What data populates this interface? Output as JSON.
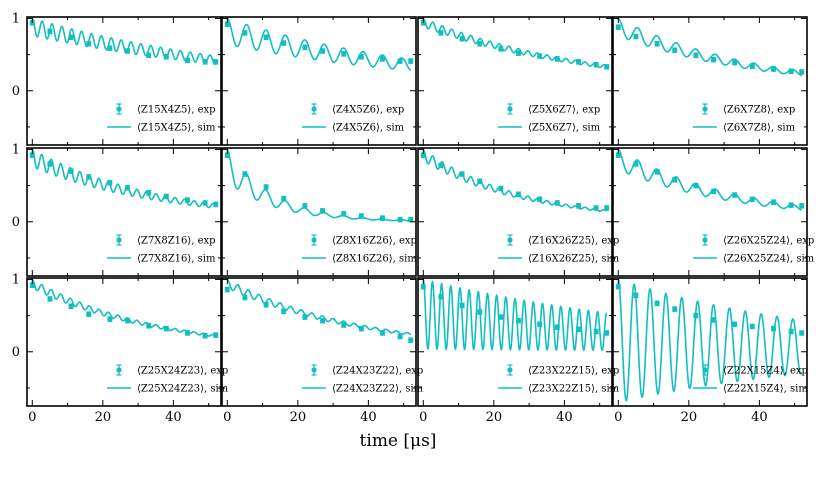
{
  "figure": {
    "xlabel": "time [μs]",
    "series_color": "#12bfbf",
    "axis_color": "#000000"
  },
  "chart_data": [
    {
      "type": "line",
      "title": "",
      "legend_loc": "lower-right",
      "xlim": [
        -1.5,
        53.5
      ],
      "ylim": [
        -0.75,
        1.02
      ],
      "xticks": [],
      "yticks": [
        0,
        1
      ],
      "legend": [
        "⟨Z15X4Z5⟩, exp",
        "⟨Z15X4Z5⟩, sim"
      ],
      "exp": {
        "x": [
          0,
          5,
          11,
          16,
          22,
          27,
          33,
          38,
          44,
          49,
          52
        ],
        "y": [
          0.94,
          0.82,
          0.74,
          0.65,
          0.59,
          0.55,
          0.49,
          0.47,
          0.42,
          0.4,
          0.4
        ],
        "err": 0.03
      },
      "sim": {
        "decay": 0.014,
        "amp": 0.12,
        "period": 2.8,
        "offset": 0
      }
    },
    {
      "type": "line",
      "title": "",
      "legend_loc": "lower-right",
      "xlim": [
        -1.5,
        53.5
      ],
      "ylim": [
        -0.75,
        1.02
      ],
      "xticks": [],
      "yticks": [],
      "legend": [
        "⟨Z4X5Z6⟩, exp",
        "⟨Z4X5Z6⟩, sim"
      ],
      "exp": {
        "x": [
          0,
          5,
          11,
          16,
          22,
          27,
          33,
          38,
          44,
          49,
          52
        ],
        "y": [
          0.92,
          0.8,
          0.74,
          0.66,
          0.6,
          0.55,
          0.51,
          0.47,
          0.44,
          0.41,
          0.41
        ],
        "err": 0.03
      },
      "sim": {
        "decay": 0.016,
        "amp": 0.18,
        "period": 5.5,
        "offset": 0
      }
    },
    {
      "type": "line",
      "title": "",
      "legend_loc": "lower-right",
      "xlim": [
        -1.5,
        53.5
      ],
      "ylim": [
        -0.75,
        1.02
      ],
      "xticks": [],
      "yticks": [],
      "legend": [
        "⟨Z5X6Z7⟩, exp",
        "⟨Z5X6Z7⟩, sim"
      ],
      "exp": {
        "x": [
          0,
          5,
          11,
          16,
          22,
          27,
          33,
          38,
          44,
          49,
          52
        ],
        "y": [
          0.94,
          0.8,
          0.72,
          0.65,
          0.58,
          0.52,
          0.48,
          0.44,
          0.4,
          0.36,
          0.33
        ],
        "err": 0.03
      },
      "sim": {
        "decay": 0.02,
        "amp": 0.06,
        "period": 2.7,
        "offset": 0
      }
    },
    {
      "type": "line",
      "title": "",
      "legend_loc": "lower-right",
      "xlim": [
        -1.5,
        53.5
      ],
      "ylim": [
        -0.75,
        1.02
      ],
      "xticks": [],
      "yticks": [],
      "legend": [
        "⟨Z6X7Z8⟩, exp",
        "⟨Z6X7Z8⟩, sim"
      ],
      "exp": {
        "x": [
          0,
          5,
          11,
          16,
          22,
          27,
          33,
          38,
          44,
          49,
          52
        ],
        "y": [
          0.88,
          0.75,
          0.65,
          0.56,
          0.49,
          0.43,
          0.39,
          0.34,
          0.3,
          0.27,
          0.26
        ],
        "err": 0.03
      },
      "sim": {
        "decay": 0.025,
        "amp": 0.12,
        "period": 5.5,
        "offset": 0
      }
    },
    {
      "type": "line",
      "title": "",
      "legend_loc": "lower-right",
      "xlim": [
        -1.5,
        53.5
      ],
      "ylim": [
        -0.75,
        1.02
      ],
      "xticks": [],
      "yticks": [
        0,
        1
      ],
      "legend": [
        "⟨Z7X8Z16⟩, exp",
        "⟨Z7X8Z16⟩, sim"
      ],
      "exp": {
        "x": [
          0,
          5,
          11,
          16,
          22,
          27,
          33,
          38,
          44,
          49,
          52
        ],
        "y": [
          0.92,
          0.8,
          0.7,
          0.62,
          0.54,
          0.47,
          0.4,
          0.35,
          0.3,
          0.26,
          0.24
        ],
        "err": 0.03
      },
      "sim": {
        "decay": 0.027,
        "amp": 0.12,
        "period": 2.7,
        "offset": 0
      }
    },
    {
      "type": "line",
      "title": "",
      "legend_loc": "lower-right",
      "xlim": [
        -1.5,
        53.5
      ],
      "ylim": [
        -0.75,
        1.02
      ],
      "xticks": [],
      "yticks": [],
      "legend": [
        "⟨Z8X16Z26⟩, exp",
        "⟨Z8X16Z26⟩, sim"
      ],
      "exp": {
        "x": [
          0,
          5,
          11,
          16,
          22,
          27,
          33,
          38,
          44,
          49,
          52
        ],
        "y": [
          0.92,
          0.66,
          0.48,
          0.32,
          0.22,
          0.15,
          0.11,
          0.08,
          0.05,
          0.03,
          0.03
        ],
        "err": 0.03
      },
      "sim": {
        "decay": 0.075,
        "amp": 0.22,
        "period": 5.5,
        "offset": 0
      }
    },
    {
      "type": "line",
      "title": "",
      "legend_loc": "lower-right",
      "xlim": [
        -1.5,
        53.5
      ],
      "ylim": [
        -0.75,
        1.02
      ],
      "xticks": [],
      "yticks": [],
      "legend": [
        "⟨Z16X26Z25⟩, exp",
        "⟨Z16X26Z25⟩, sim"
      ],
      "exp": {
        "x": [
          0,
          5,
          11,
          16,
          22,
          27,
          33,
          38,
          44,
          49,
          52
        ],
        "y": [
          0.92,
          0.78,
          0.66,
          0.56,
          0.46,
          0.38,
          0.31,
          0.26,
          0.22,
          0.19,
          0.19
        ],
        "err": 0.03
      },
      "sim": {
        "decay": 0.035,
        "amp": 0.08,
        "period": 2.7,
        "offset": 0
      }
    },
    {
      "type": "line",
      "title": "",
      "legend_loc": "lower-right",
      "xlim": [
        -1.5,
        53.5
      ],
      "ylim": [
        -0.75,
        1.02
      ],
      "xticks": [],
      "yticks": [],
      "legend": [
        "⟨Z26X25Z24⟩, exp",
        "⟨Z26X25Z24⟩, sim"
      ],
      "exp": {
        "x": [
          0,
          5,
          11,
          16,
          22,
          27,
          33,
          38,
          44,
          49,
          52
        ],
        "y": [
          0.92,
          0.8,
          0.69,
          0.58,
          0.5,
          0.42,
          0.37,
          0.31,
          0.27,
          0.23,
          0.22
        ],
        "err": 0.03
      },
      "sim": {
        "decay": 0.029,
        "amp": 0.14,
        "period": 5.5,
        "offset": 0
      }
    },
    {
      "type": "line",
      "title": "",
      "legend_loc": "lower-right",
      "xlim": [
        -1.5,
        53.5
      ],
      "ylim": [
        -0.75,
        1.02
      ],
      "xticks": [
        0,
        20,
        40
      ],
      "yticks": [
        0,
        1
      ],
      "legend": [
        "⟨Z25X24Z23⟩, exp",
        "⟨Z25X24Z23⟩, sim"
      ],
      "exp": {
        "x": [
          0,
          5,
          11,
          16,
          22,
          27,
          33,
          38,
          44,
          49,
          52
        ],
        "y": [
          0.92,
          0.73,
          0.63,
          0.52,
          0.45,
          0.43,
          0.36,
          0.32,
          0.26,
          0.22,
          0.23
        ],
        "err": 0.03
      },
      "sim": {
        "decay": 0.028,
        "amp": 0.06,
        "period": 2.7,
        "offset": 0
      }
    },
    {
      "type": "line",
      "title": "",
      "legend_loc": "lower-right",
      "xlim": [
        -1.5,
        53.5
      ],
      "ylim": [
        -0.75,
        1.02
      ],
      "xticks": [
        0,
        20,
        40
      ],
      "yticks": [],
      "legend": [
        "⟨Z24X23Z22⟩, exp",
        "⟨Z24X23Z22⟩, sim"
      ],
      "exp": {
        "x": [
          0,
          5,
          11,
          16,
          22,
          27,
          33,
          38,
          44,
          49,
          52
        ],
        "y": [
          0.86,
          0.75,
          0.65,
          0.56,
          0.48,
          0.43,
          0.37,
          0.32,
          0.26,
          0.21,
          0.16
        ],
        "err": 0.03
      },
      "sim": {
        "decay": 0.026,
        "amp": 0.06,
        "period": 3.0,
        "offset": 0
      }
    },
    {
      "type": "line",
      "title": "",
      "legend_loc": "lower-right",
      "xlim": [
        -1.5,
        53.5
      ],
      "ylim": [
        -0.75,
        1.02
      ],
      "xticks": [
        0,
        20,
        40
      ],
      "yticks": [],
      "legend": [
        "⟨Z23X22Z15⟩, exp",
        "⟨Z23X22Z15⟩, sim"
      ],
      "exp": {
        "x": [
          0,
          5,
          11,
          16,
          22,
          27,
          33,
          38,
          44,
          49,
          52
        ],
        "y": [
          0.9,
          0.76,
          0.64,
          0.55,
          0.48,
          0.43,
          0.38,
          0.34,
          0.31,
          0.28,
          0.26
        ],
        "err": 0.03
      },
      "sim": {
        "decay": 0.012,
        "amp": 0.4,
        "period": 2.6,
        "offset": 0.42
      }
    },
    {
      "type": "line",
      "title": "",
      "legend_loc": "lower-right",
      "xlim": [
        -1.5,
        53.5
      ],
      "ylim": [
        -0.75,
        1.02
      ],
      "xticks": [
        0,
        20,
        40
      ],
      "yticks": [],
      "legend": [
        "⟨Z22X15Z4⟩, exp",
        "⟨Z22X15Z4⟩, sim"
      ],
      "exp": {
        "x": [
          0,
          5,
          11,
          16,
          22,
          27,
          33,
          38,
          44,
          49,
          52
        ],
        "y": [
          0.9,
          0.78,
          0.67,
          0.59,
          0.5,
          0.44,
          0.38,
          0.35,
          0.32,
          0.28,
          0.26
        ],
        "err": 0.03
      },
      "sim": {
        "decay": 0.016,
        "amp": 0.85,
        "period": 4.5,
        "offset": 0
      }
    }
  ]
}
